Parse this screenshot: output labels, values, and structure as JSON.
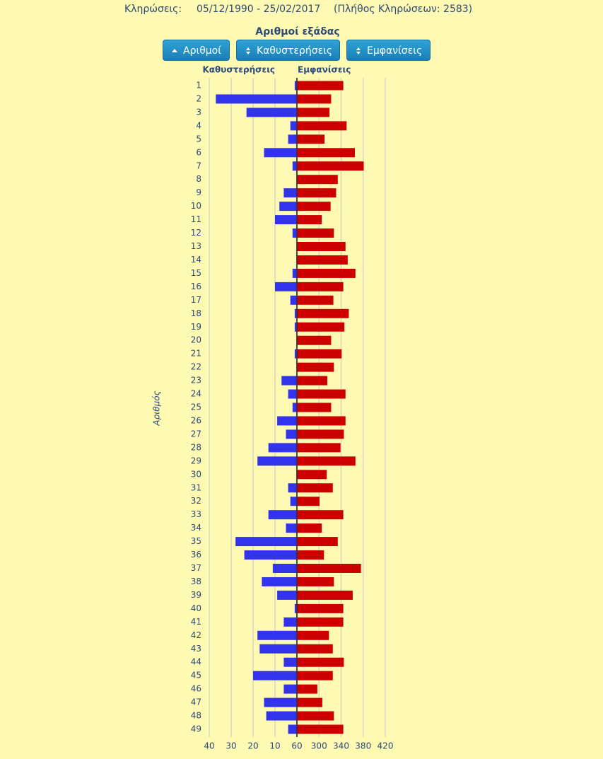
{
  "header": {
    "draws_label": "Κληρώσεις:",
    "period": "05/12/1990 - 25/02/2017",
    "count_text": "(Πλήθος Κληρώσεων: 2583)"
  },
  "controls": [
    "Αριθμοί",
    "Καθυστερήσεις",
    "Εμφανίσεις"
  ],
  "chart_data": {
    "type": "diverging-bar",
    "title": "Αριθμοί εξάδας",
    "y_label": "Αριθμός",
    "categories": [
      1,
      2,
      3,
      4,
      5,
      6,
      7,
      8,
      9,
      10,
      11,
      12,
      13,
      14,
      15,
      16,
      17,
      18,
      19,
      20,
      21,
      22,
      23,
      24,
      25,
      26,
      27,
      28,
      29,
      30,
      31,
      32,
      33,
      34,
      35,
      36,
      37,
      38,
      39,
      40,
      41,
      42,
      43,
      44,
      45,
      46,
      47,
      48,
      49
    ],
    "series": [
      {
        "name": "Καθυστερήσεις",
        "color": "#3333ee",
        "axis": "x2",
        "values": [
          1,
          37,
          23,
          3,
          4,
          15,
          2,
          0,
          6,
          8,
          10,
          2,
          0,
          0,
          2,
          10,
          3,
          1,
          1,
          0,
          1,
          0,
          7,
          4,
          2,
          9,
          5,
          13,
          18,
          0,
          4,
          3,
          13,
          5,
          28,
          24,
          11,
          16,
          9,
          1,
          6,
          18,
          17,
          6,
          20,
          6,
          15,
          14,
          4
        ]
      },
      {
        "name": "Εμφανίσεις",
        "color": "#cc0000",
        "values": [
          344,
          322,
          319,
          350,
          310,
          365,
          381,
          334,
          331,
          321,
          305,
          327,
          348,
          352,
          366,
          344,
          326,
          354,
          346,
          322,
          341,
          327,
          315,
          348,
          322,
          348,
          345,
          339,
          366,
          314,
          325,
          301,
          344,
          305,
          334,
          309,
          376,
          327,
          361,
          344,
          344,
          318,
          325,
          345,
          325,
          297,
          306,
          327,
          344
        ]
      }
    ],
    "xlim": [
      260,
      420
    ],
    "xticks": [
      {
        "value": 260,
        "label": "60"
      },
      300,
      340,
      380,
      420
    ],
    "x2lim": [
      0,
      40
    ],
    "x2ticks": [
      40,
      30,
      20,
      10
    ],
    "grid": true
  }
}
